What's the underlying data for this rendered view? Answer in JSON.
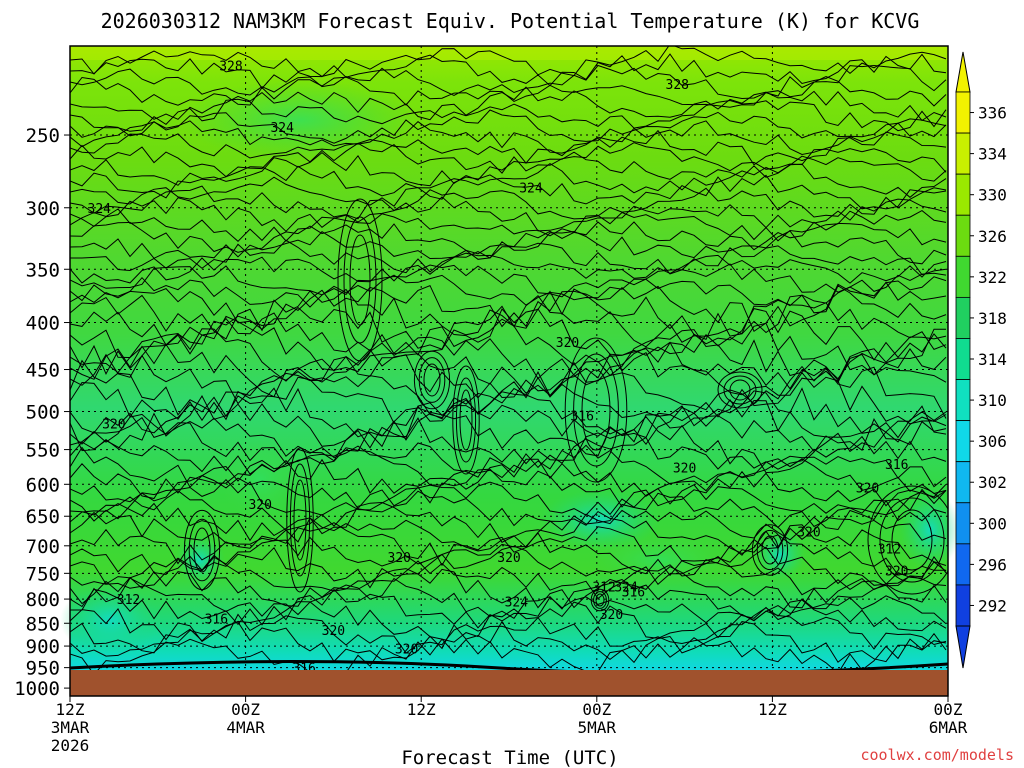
{
  "chart_data": {
    "type": "heatmap",
    "title": "2026030312 NAM3KM Forecast Equiv. Potential Temperature (K) for KCVG",
    "xlabel": "Forecast Time (UTC)",
    "ylabel": "",
    "y_axis": {
      "scale": "log-pressure",
      "ylim": [
        1020,
        200
      ],
      "ticks": [
        "250",
        "300",
        "350",
        "400",
        "450",
        "500",
        "550",
        "600",
        "650",
        "700",
        "750",
        "800",
        "850",
        "900",
        "950",
        "1000"
      ]
    },
    "x_axis": {
      "range_hours": [
        0,
        60
      ],
      "ticks": [
        {
          "hour": 0,
          "lines": [
            "12Z",
            "3MAR",
            "2026"
          ]
        },
        {
          "hour": 12,
          "lines": [
            "00Z",
            "4MAR"
          ]
        },
        {
          "hour": 24,
          "lines": [
            "12Z"
          ]
        },
        {
          "hour": 36,
          "lines": [
            "00Z",
            "5MAR"
          ]
        },
        {
          "hour": 48,
          "lines": [
            "12Z"
          ]
        },
        {
          "hour": 60,
          "lines": [
            "00Z",
            "6MAR"
          ]
        }
      ]
    },
    "colorbar": {
      "labels": [
        "336",
        "334",
        "330",
        "326",
        "322",
        "318",
        "314",
        "310",
        "306",
        "302",
        "300",
        "296",
        "292"
      ],
      "colors": [
        "#f2f200",
        "#c8f000",
        "#9ae800",
        "#6cdc10",
        "#40d830",
        "#20d060",
        "#10dc90",
        "#10e0c0",
        "#10d8e8",
        "#10b8f0",
        "#1090f0",
        "#1068f0",
        "#1040e0"
      ]
    },
    "contours": [
      {
        "value": 328,
        "hour": 11,
        "pressure": 210
      },
      {
        "value": 328,
        "hour": 41.5,
        "pressure": 220
      },
      {
        "value": 324,
        "hour": 14.5,
        "pressure": 245
      },
      {
        "value": 324,
        "hour": 2,
        "pressure": 300
      },
      {
        "value": 324,
        "hour": 31.5,
        "pressure": 285
      },
      {
        "value": 320,
        "hour": 34,
        "pressure": 420
      },
      {
        "value": 320,
        "hour": 3,
        "pressure": 515
      },
      {
        "value": 316,
        "hour": 35,
        "pressure": 505
      },
      {
        "value": 320,
        "hour": 42,
        "pressure": 575
      },
      {
        "value": 316,
        "hour": 56.5,
        "pressure": 570
      },
      {
        "value": 320,
        "hour": 54.5,
        "pressure": 605
      },
      {
        "value": 320,
        "hour": 13,
        "pressure": 630
      },
      {
        "value": 320,
        "hour": 50.5,
        "pressure": 675
      },
      {
        "value": 320,
        "hour": 22.5,
        "pressure": 720
      },
      {
        "value": 320,
        "hour": 30,
        "pressure": 720
      },
      {
        "value": 312,
        "hour": 56,
        "pressure": 705
      },
      {
        "value": 320,
        "hour": 56.5,
        "pressure": 745
      },
      {
        "value": 312,
        "hour": 36.5,
        "pressure": 775
      },
      {
        "value": 324,
        "hour": 38,
        "pressure": 775
      },
      {
        "value": 316,
        "hour": 38.5,
        "pressure": 785
      },
      {
        "value": 324,
        "hour": 30.5,
        "pressure": 805
      },
      {
        "value": 312,
        "hour": 4,
        "pressure": 800
      },
      {
        "value": 316,
        "hour": 10,
        "pressure": 840
      },
      {
        "value": 320,
        "hour": 37,
        "pressure": 830
      },
      {
        "value": 320,
        "hour": 18,
        "pressure": 865
      },
      {
        "value": 320,
        "hour": 23,
        "pressure": 905
      },
      {
        "value": 316,
        "hour": 16,
        "pressure": 950
      }
    ]
  },
  "credit": "coolwx.com/models"
}
